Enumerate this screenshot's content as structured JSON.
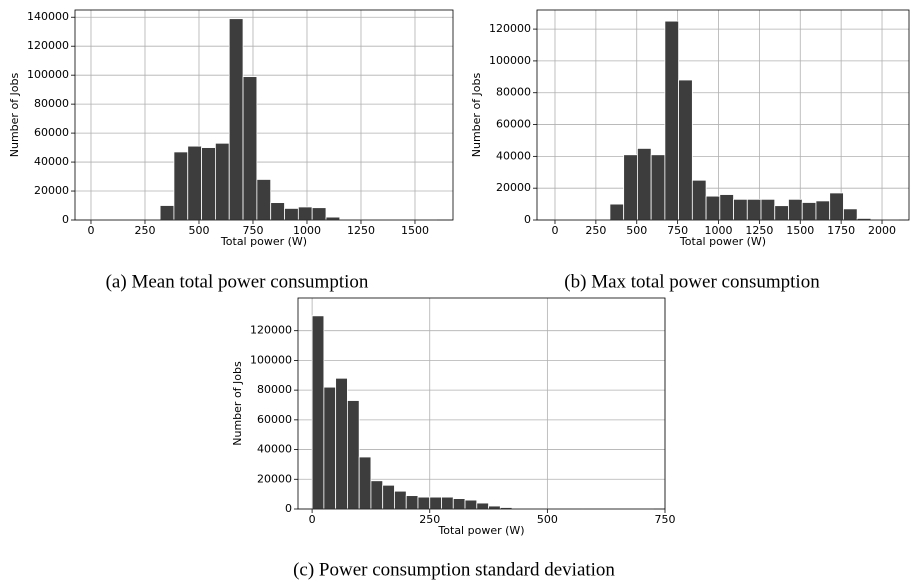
{
  "chart_data": [
    {
      "type": "histogram",
      "caption": "(a) Mean total power consumption",
      "xlabel": "Total power (W)",
      "ylabel": "Number of Jobs",
      "color": "#3d3d3d",
      "grid": true,
      "bins": [
        0,
        64,
        128,
        192,
        256,
        320,
        384,
        448,
        512,
        576,
        640,
        704,
        768,
        832,
        896,
        960,
        1024,
        1088,
        1152,
        1216,
        1280,
        1344,
        1408,
        1472,
        1536,
        1600
      ],
      "values": [
        100,
        100,
        100,
        100,
        200,
        10000,
        47000,
        51000,
        50000,
        53000,
        139000,
        99000,
        28000,
        12000,
        8000,
        9000,
        8500,
        2000,
        500,
        200,
        100,
        100,
        100,
        50,
        50
      ],
      "xlim": [
        -74,
        1676
      ],
      "ylim": [
        0,
        145000
      ],
      "xticks": [
        0,
        250,
        500,
        750,
        1000,
        1250,
        1500
      ],
      "yticks": [
        0,
        20000,
        40000,
        60000,
        80000,
        100000,
        120000,
        140000
      ]
    },
    {
      "type": "histogram",
      "caption": "(b) Max total power consumption",
      "xlabel": "Total power (W)",
      "ylabel": "Number of Jobs",
      "color": "#3d3d3d",
      "grid": true,
      "bins": [
        0,
        84,
        168,
        252,
        336,
        420,
        504,
        588,
        672,
        756,
        840,
        924,
        1008,
        1092,
        1176,
        1260,
        1344,
        1428,
        1512,
        1596,
        1680,
        1764,
        1848,
        1932,
        2016,
        2100
      ],
      "values": [
        100,
        100,
        100,
        200,
        10000,
        41000,
        45000,
        41000,
        125000,
        88000,
        25000,
        15000,
        16000,
        13000,
        13000,
        13000,
        9000,
        13000,
        11000,
        12000,
        17000,
        7000,
        1000,
        100,
        50
      ],
      "xlim": [
        -110,
        2165
      ],
      "ylim": [
        0,
        132000
      ],
      "xticks": [
        0,
        250,
        500,
        750,
        1000,
        1250,
        1500,
        1750,
        2000
      ],
      "yticks": [
        0,
        20000,
        40000,
        60000,
        80000,
        100000,
        120000
      ]
    },
    {
      "type": "histogram",
      "caption": "(c) Power consumption standard deviation",
      "xlabel": "Total power (W)",
      "ylabel": "Number of Jobs",
      "color": "#3d3d3d",
      "grid": true,
      "bins": [
        0,
        25,
        50,
        75,
        100,
        125,
        150,
        175,
        200,
        225,
        250,
        275,
        300,
        325,
        350,
        375,
        400,
        425,
        450,
        475,
        500,
        525,
        550,
        575,
        600,
        625,
        650,
        675,
        700,
        725
      ],
      "values": [
        130000,
        82000,
        88000,
        73000,
        35000,
        19000,
        16000,
        12000,
        9000,
        8000,
        8000,
        8000,
        7000,
        6000,
        4000,
        2000,
        1000,
        300,
        200,
        100,
        100,
        50,
        50,
        50,
        50,
        50,
        50,
        50,
        50
      ],
      "xlim": [
        -30,
        750
      ],
      "ylim": [
        0,
        142000
      ],
      "xticks": [
        0,
        250,
        500,
        750
      ],
      "yticks": [
        0,
        20000,
        40000,
        60000,
        80000,
        100000,
        120000
      ]
    }
  ]
}
